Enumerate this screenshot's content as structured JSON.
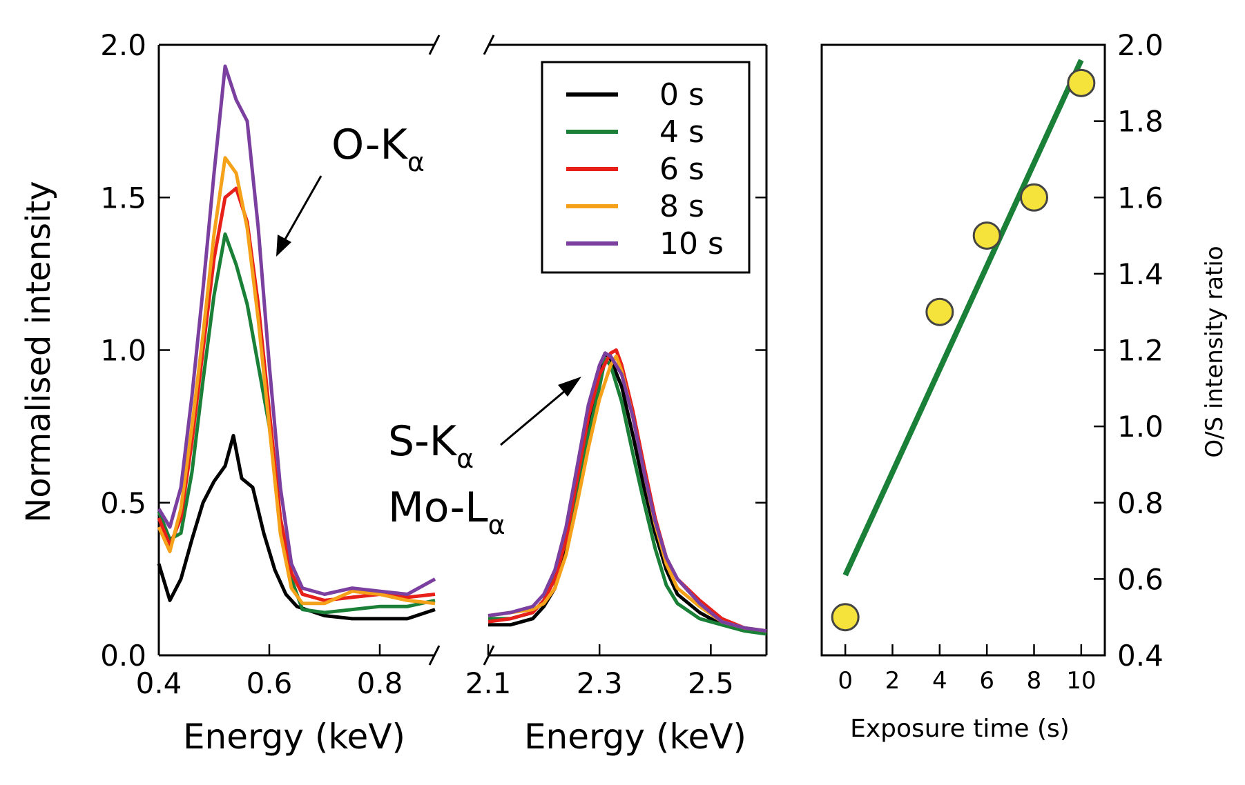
{
  "chart_data": [
    {
      "type": "line",
      "panel": "left",
      "xlabel": "Energy (keV)",
      "ylabel": "Normalised intensity",
      "xlim": [
        0.4,
        0.9
      ],
      "ylim": [
        0.0,
        2.0
      ],
      "xticks": [
        "0.4",
        "0.6",
        "0.8"
      ],
      "yticks": [
        "0.0",
        "0.5",
        "1.0",
        "1.5",
        "2.0"
      ],
      "annotation": {
        "main": "O-K",
        "sub": "α"
      },
      "series": [
        {
          "name": "0 s",
          "color": "#000000",
          "x": [
            0.4,
            0.42,
            0.44,
            0.46,
            0.48,
            0.5,
            0.52,
            0.535,
            0.55,
            0.57,
            0.59,
            0.61,
            0.63,
            0.65,
            0.7,
            0.75,
            0.8,
            0.85,
            0.9
          ],
          "y": [
            0.3,
            0.18,
            0.25,
            0.38,
            0.5,
            0.57,
            0.62,
            0.72,
            0.58,
            0.55,
            0.4,
            0.28,
            0.2,
            0.16,
            0.13,
            0.12,
            0.12,
            0.12,
            0.15
          ]
        },
        {
          "name": "4 s",
          "color": "#1a7f37",
          "x": [
            0.4,
            0.42,
            0.44,
            0.46,
            0.48,
            0.5,
            0.52,
            0.54,
            0.56,
            0.58,
            0.6,
            0.62,
            0.64,
            0.66,
            0.7,
            0.75,
            0.8,
            0.85,
            0.9
          ],
          "y": [
            0.47,
            0.38,
            0.4,
            0.6,
            0.9,
            1.18,
            1.38,
            1.28,
            1.15,
            0.95,
            0.75,
            0.45,
            0.25,
            0.15,
            0.14,
            0.15,
            0.16,
            0.16,
            0.18
          ]
        },
        {
          "name": "6 s",
          "color": "#e8201a",
          "x": [
            0.4,
            0.42,
            0.44,
            0.46,
            0.48,
            0.5,
            0.52,
            0.54,
            0.56,
            0.58,
            0.6,
            0.62,
            0.64,
            0.66,
            0.7,
            0.75,
            0.8,
            0.85,
            0.9
          ],
          "y": [
            0.45,
            0.36,
            0.45,
            0.7,
            1.0,
            1.3,
            1.5,
            1.53,
            1.42,
            1.15,
            0.8,
            0.45,
            0.27,
            0.2,
            0.18,
            0.19,
            0.2,
            0.19,
            0.2
          ]
        },
        {
          "name": "8 s",
          "color": "#f5a21a",
          "x": [
            0.4,
            0.42,
            0.44,
            0.46,
            0.48,
            0.5,
            0.52,
            0.54,
            0.56,
            0.58,
            0.6,
            0.62,
            0.64,
            0.66,
            0.7,
            0.75,
            0.8,
            0.85,
            0.9
          ],
          "y": [
            0.42,
            0.34,
            0.48,
            0.75,
            1.05,
            1.38,
            1.63,
            1.58,
            1.4,
            1.1,
            0.75,
            0.4,
            0.22,
            0.17,
            0.17,
            0.21,
            0.2,
            0.18,
            0.17
          ]
        },
        {
          "name": "10 s",
          "color": "#7b3fa0",
          "x": [
            0.4,
            0.42,
            0.44,
            0.46,
            0.48,
            0.5,
            0.52,
            0.54,
            0.56,
            0.58,
            0.6,
            0.62,
            0.64,
            0.66,
            0.7,
            0.75,
            0.8,
            0.85,
            0.9
          ],
          "y": [
            0.48,
            0.42,
            0.55,
            0.85,
            1.2,
            1.58,
            1.93,
            1.82,
            1.75,
            1.4,
            0.95,
            0.55,
            0.3,
            0.22,
            0.2,
            0.22,
            0.21,
            0.2,
            0.25
          ]
        }
      ]
    },
    {
      "type": "line",
      "panel": "middle",
      "xlabel": "Energy (keV)",
      "xlim": [
        2.1,
        2.6
      ],
      "ylim": [
        0.0,
        2.0
      ],
      "xticks": [
        "2.1",
        "2.3",
        "2.5"
      ],
      "annotations": [
        {
          "main": "S-K",
          "sub": "α"
        },
        {
          "main": "Mo-L",
          "sub": "α"
        }
      ],
      "series": [
        {
          "name": "0 s",
          "color": "#000000",
          "x": [
            2.1,
            2.14,
            2.18,
            2.2,
            2.22,
            2.24,
            2.26,
            2.28,
            2.3,
            2.31,
            2.32,
            2.34,
            2.36,
            2.38,
            2.4,
            2.42,
            2.44,
            2.48,
            2.52,
            2.56,
            2.6
          ],
          "y": [
            0.1,
            0.1,
            0.12,
            0.16,
            0.22,
            0.35,
            0.55,
            0.75,
            0.93,
            0.99,
            0.97,
            0.88,
            0.72,
            0.55,
            0.4,
            0.28,
            0.2,
            0.14,
            0.1,
            0.09,
            0.07
          ]
        },
        {
          "name": "4 s",
          "color": "#1a7f37",
          "x": [
            2.1,
            2.14,
            2.18,
            2.2,
            2.22,
            2.24,
            2.26,
            2.28,
            2.3,
            2.31,
            2.32,
            2.34,
            2.36,
            2.38,
            2.4,
            2.42,
            2.44,
            2.48,
            2.52,
            2.56,
            2.6
          ],
          "y": [
            0.12,
            0.12,
            0.14,
            0.18,
            0.26,
            0.38,
            0.55,
            0.72,
            0.88,
            0.97,
            0.95,
            0.83,
            0.66,
            0.5,
            0.35,
            0.23,
            0.17,
            0.12,
            0.1,
            0.08,
            0.07
          ]
        },
        {
          "name": "6 s",
          "color": "#e8201a",
          "x": [
            2.1,
            2.14,
            2.18,
            2.2,
            2.22,
            2.24,
            2.26,
            2.28,
            2.3,
            2.32,
            2.33,
            2.34,
            2.36,
            2.38,
            2.4,
            2.42,
            2.44,
            2.48,
            2.52,
            2.56,
            2.6
          ],
          "y": [
            0.11,
            0.12,
            0.14,
            0.18,
            0.25,
            0.38,
            0.58,
            0.78,
            0.92,
            0.99,
            1.0,
            0.95,
            0.8,
            0.62,
            0.45,
            0.32,
            0.25,
            0.18,
            0.12,
            0.09,
            0.08
          ]
        },
        {
          "name": "8 s",
          "color": "#f5a21a",
          "x": [
            2.1,
            2.14,
            2.18,
            2.2,
            2.22,
            2.24,
            2.26,
            2.28,
            2.3,
            2.32,
            2.33,
            2.34,
            2.36,
            2.38,
            2.4,
            2.42,
            2.44,
            2.48,
            2.52,
            2.56,
            2.6
          ],
          "y": [
            0.13,
            0.14,
            0.15,
            0.17,
            0.22,
            0.33,
            0.5,
            0.68,
            0.84,
            0.95,
            0.98,
            0.93,
            0.78,
            0.6,
            0.43,
            0.3,
            0.22,
            0.16,
            0.11,
            0.09,
            0.08
          ]
        },
        {
          "name": "10 s",
          "color": "#7b3fa0",
          "x": [
            2.1,
            2.14,
            2.18,
            2.2,
            2.22,
            2.24,
            2.26,
            2.28,
            2.3,
            2.31,
            2.32,
            2.34,
            2.36,
            2.38,
            2.4,
            2.42,
            2.44,
            2.48,
            2.52,
            2.56,
            2.6
          ],
          "y": [
            0.13,
            0.14,
            0.16,
            0.2,
            0.28,
            0.42,
            0.62,
            0.82,
            0.95,
            0.99,
            0.98,
            0.92,
            0.78,
            0.6,
            0.44,
            0.32,
            0.25,
            0.17,
            0.11,
            0.09,
            0.08
          ]
        }
      ],
      "legend": {
        "placement": "top-right",
        "entries": [
          "0 s",
          "4 s",
          "6 s",
          "8 s",
          "10 s"
        ]
      }
    },
    {
      "type": "scatter",
      "panel": "right",
      "xlabel": "Exposure time (s)",
      "ylabel": "O/S intensity ratio",
      "xlim": [
        -1,
        11
      ],
      "ylim": [
        0.4,
        2.0
      ],
      "xticks": [
        "0",
        "2",
        "4",
        "6",
        "8",
        "10"
      ],
      "yticks": [
        "0.4",
        "0.6",
        "0.8",
        "1.0",
        "1.2",
        "1.4",
        "1.6",
        "1.8",
        "2.0"
      ],
      "points": {
        "x": [
          0,
          4,
          6,
          8,
          10
        ],
        "y": [
          0.5,
          1.3,
          1.5,
          1.6,
          1.9
        ],
        "color": "#f5e23a"
      },
      "fit_line": {
        "x": [
          0,
          10
        ],
        "y": [
          0.61,
          1.96
        ],
        "color": "#1a7f37"
      }
    }
  ]
}
